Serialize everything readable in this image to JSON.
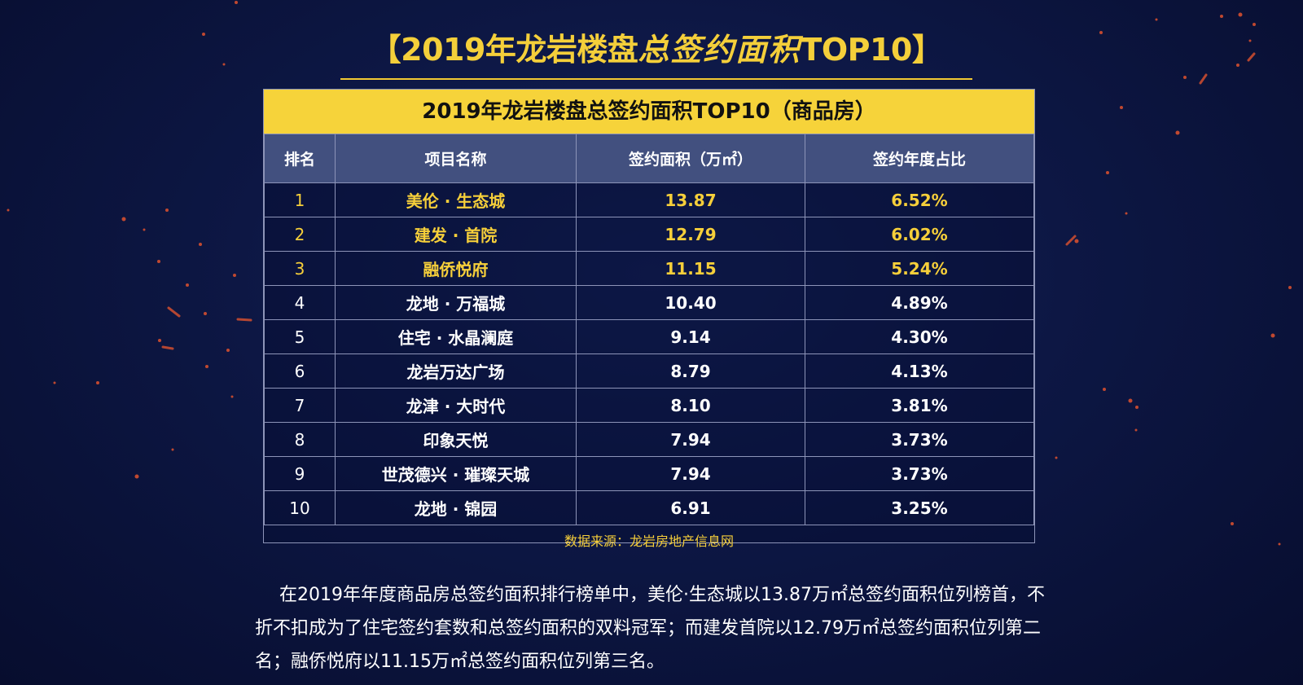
{
  "header": {
    "bracket_left": "【",
    "title_main": "2019年龙岩楼盘",
    "title_script": "总签约面积",
    "title_tail": "TOP10",
    "bracket_right": "】"
  },
  "table": {
    "title": "2019年龙岩楼盘总签约面积TOP10（商品房）",
    "columns": [
      "排名",
      "项目名称",
      "签约面积（万㎡）",
      "签约年度占比"
    ],
    "rows": [
      {
        "rank": "1",
        "name": "美伦 · 生态城",
        "area": "13.87",
        "share": "6.52%"
      },
      {
        "rank": "2",
        "name": "建发 · 首院",
        "area": "12.79",
        "share": "6.02%"
      },
      {
        "rank": "3",
        "name": "融侨悦府",
        "area": "11.15",
        "share": "5.24%"
      },
      {
        "rank": "4",
        "name": "龙地 · 万福城",
        "area": "10.40",
        "share": "4.89%"
      },
      {
        "rank": "5",
        "name": "住宅 · 水晶澜庭",
        "area": "9.14",
        "share": "4.30%"
      },
      {
        "rank": "6",
        "name": "龙岩万达广场",
        "area": "8.79",
        "share": "4.13%"
      },
      {
        "rank": "7",
        "name": "龙津 · 大时代",
        "area": "8.10",
        "share": "3.81%"
      },
      {
        "rank": "8",
        "name": "印象天悦",
        "area": "7.94",
        "share": "3.73%"
      },
      {
        "rank": "9",
        "name": "世茂德兴 · 璀璨天城",
        "area": "7.94",
        "share": "3.73%"
      },
      {
        "rank": "10",
        "name": "龙地 · 锦园",
        "area": "6.91",
        "share": "3.25%"
      }
    ],
    "source": "数据来源：龙岩房地产信息网"
  },
  "paragraph": "在2019年年度商品房总签约面积排行榜单中，美伦·生态城以13.87万㎡总签约面积位列榜首，不折不扣成为了住宅签约套数和总签约面积的双料冠军；而建发首院以12.79万㎡总签约面积位列第二名；融侨悦府以11.15万㎡总签约面积位列第三名。",
  "colors": {
    "accent": "#f6d33a",
    "background": "#0d1744",
    "header_row": "#42507f"
  }
}
